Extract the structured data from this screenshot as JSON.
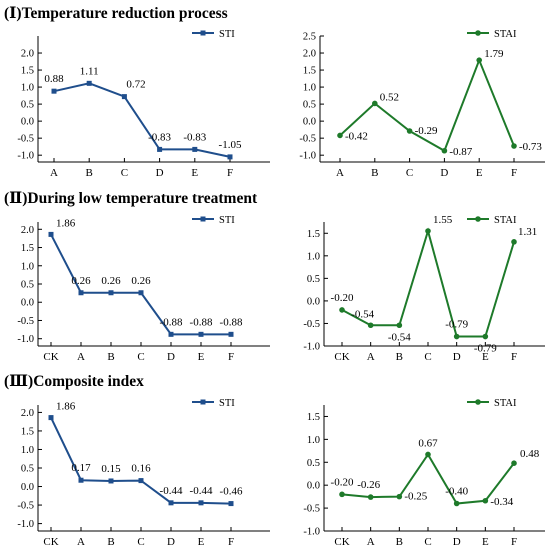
{
  "sections": [
    {
      "title": "(Ⅰ)Temperature reduction process"
    },
    {
      "title": "(Ⅱ)During low temperature treatment"
    },
    {
      "title": "(Ⅲ)Composite index"
    }
  ],
  "colors": {
    "sti": "#1f4e8c",
    "stai": "#1e7a2a",
    "axis": "#000000"
  },
  "chart_data": [
    {
      "type": "line",
      "panel": "Ⅰ-STI",
      "categories": [
        "A",
        "B",
        "C",
        "D",
        "E",
        "F"
      ],
      "series": [
        {
          "name": "STI",
          "values": [
            0.88,
            1.11,
            0.72,
            -0.83,
            -0.83,
            -1.05
          ]
        }
      ],
      "labels": [
        "0.88",
        "1.11",
        "0.72",
        "-0.83",
        "-0.83",
        "-1.05"
      ],
      "yticks": [
        -1.0,
        -0.5,
        0.0,
        0.5,
        1.0,
        1.5,
        2.0
      ],
      "ylim": [
        -1.2,
        2.5
      ],
      "legend": "top-right",
      "grid": false
    },
    {
      "type": "line",
      "panel": "Ⅰ-STAI",
      "categories": [
        "A",
        "B",
        "C",
        "D",
        "E",
        "F"
      ],
      "series": [
        {
          "name": "STAI",
          "values": [
            -0.42,
            0.52,
            -0.29,
            -0.87,
            1.79,
            -0.73
          ]
        }
      ],
      "labels": [
        "-0.42",
        "0.52",
        "-0.29",
        "-0.87",
        "1.79",
        "-0.73"
      ],
      "yticks": [
        -1.0,
        -0.5,
        0.0,
        0.5,
        1.0,
        1.5,
        2.0,
        2.5
      ],
      "ylim": [
        -1.2,
        2.5
      ],
      "legend": "top-right",
      "grid": false
    },
    {
      "type": "line",
      "panel": "Ⅱ-STI",
      "categories": [
        "CK",
        "A",
        "B",
        "C",
        "D",
        "E",
        "F"
      ],
      "series": [
        {
          "name": "STI",
          "values": [
            1.86,
            0.26,
            0.26,
            0.26,
            -0.88,
            -0.88,
            -0.88
          ]
        }
      ],
      "labels": [
        "1.86",
        "0.26",
        "0.26",
        "0.26",
        "-0.88",
        "-0.88",
        "-0.88"
      ],
      "yticks": [
        -1.0,
        -0.5,
        0.0,
        0.5,
        1.0,
        1.5,
        2.0
      ],
      "ylim": [
        -1.2,
        2.2
      ],
      "legend": "top-right",
      "grid": false
    },
    {
      "type": "line",
      "panel": "Ⅱ-STAI",
      "categories": [
        "CK",
        "A",
        "B",
        "C",
        "D",
        "E",
        "F"
      ],
      "series": [
        {
          "name": "STAI",
          "values": [
            -0.2,
            -0.54,
            -0.54,
            1.55,
            -0.79,
            -0.79,
            1.31
          ]
        }
      ],
      "labels": [
        "-0.20",
        "-0.54",
        "-0.54",
        "1.55",
        "-0.79",
        "-0.79",
        "1.31"
      ],
      "yticks": [
        -1.0,
        -0.5,
        0.0,
        0.5,
        1.0,
        1.5
      ],
      "ylim": [
        -1.0,
        1.75
      ],
      "legend": "top-right",
      "grid": false
    },
    {
      "type": "line",
      "panel": "Ⅲ-STI",
      "categories": [
        "CK",
        "A",
        "B",
        "C",
        "D",
        "E",
        "F"
      ],
      "series": [
        {
          "name": "STI",
          "values": [
            1.86,
            0.17,
            0.15,
            0.16,
            -0.44,
            -0.44,
            -0.46
          ]
        }
      ],
      "labels": [
        "1.86",
        "0.17",
        "0.15",
        "0.16",
        "-0.44",
        "-0.44",
        "-0.46"
      ],
      "yticks": [
        -1.0,
        -0.5,
        0.0,
        0.5,
        1.0,
        1.5,
        2.0
      ],
      "ylim": [
        -1.2,
        2.2
      ],
      "legend": "top-right",
      "grid": false
    },
    {
      "type": "line",
      "panel": "Ⅲ-STAI",
      "categories": [
        "CK",
        "A",
        "B",
        "C",
        "D",
        "E",
        "F"
      ],
      "series": [
        {
          "name": "STAI",
          "values": [
            -0.2,
            -0.26,
            -0.25,
            0.67,
            -0.4,
            -0.34,
            0.48
          ]
        }
      ],
      "labels": [
        "-0.20",
        "-0.26",
        "-0.25",
        "0.67",
        "-0.40",
        "-0.34",
        "0.48"
      ],
      "yticks": [
        -1.0,
        -0.5,
        0.0,
        0.5,
        1.0,
        1.5
      ],
      "ylim": [
        -1.0,
        1.75
      ],
      "legend": "top-right",
      "grid": false
    }
  ]
}
